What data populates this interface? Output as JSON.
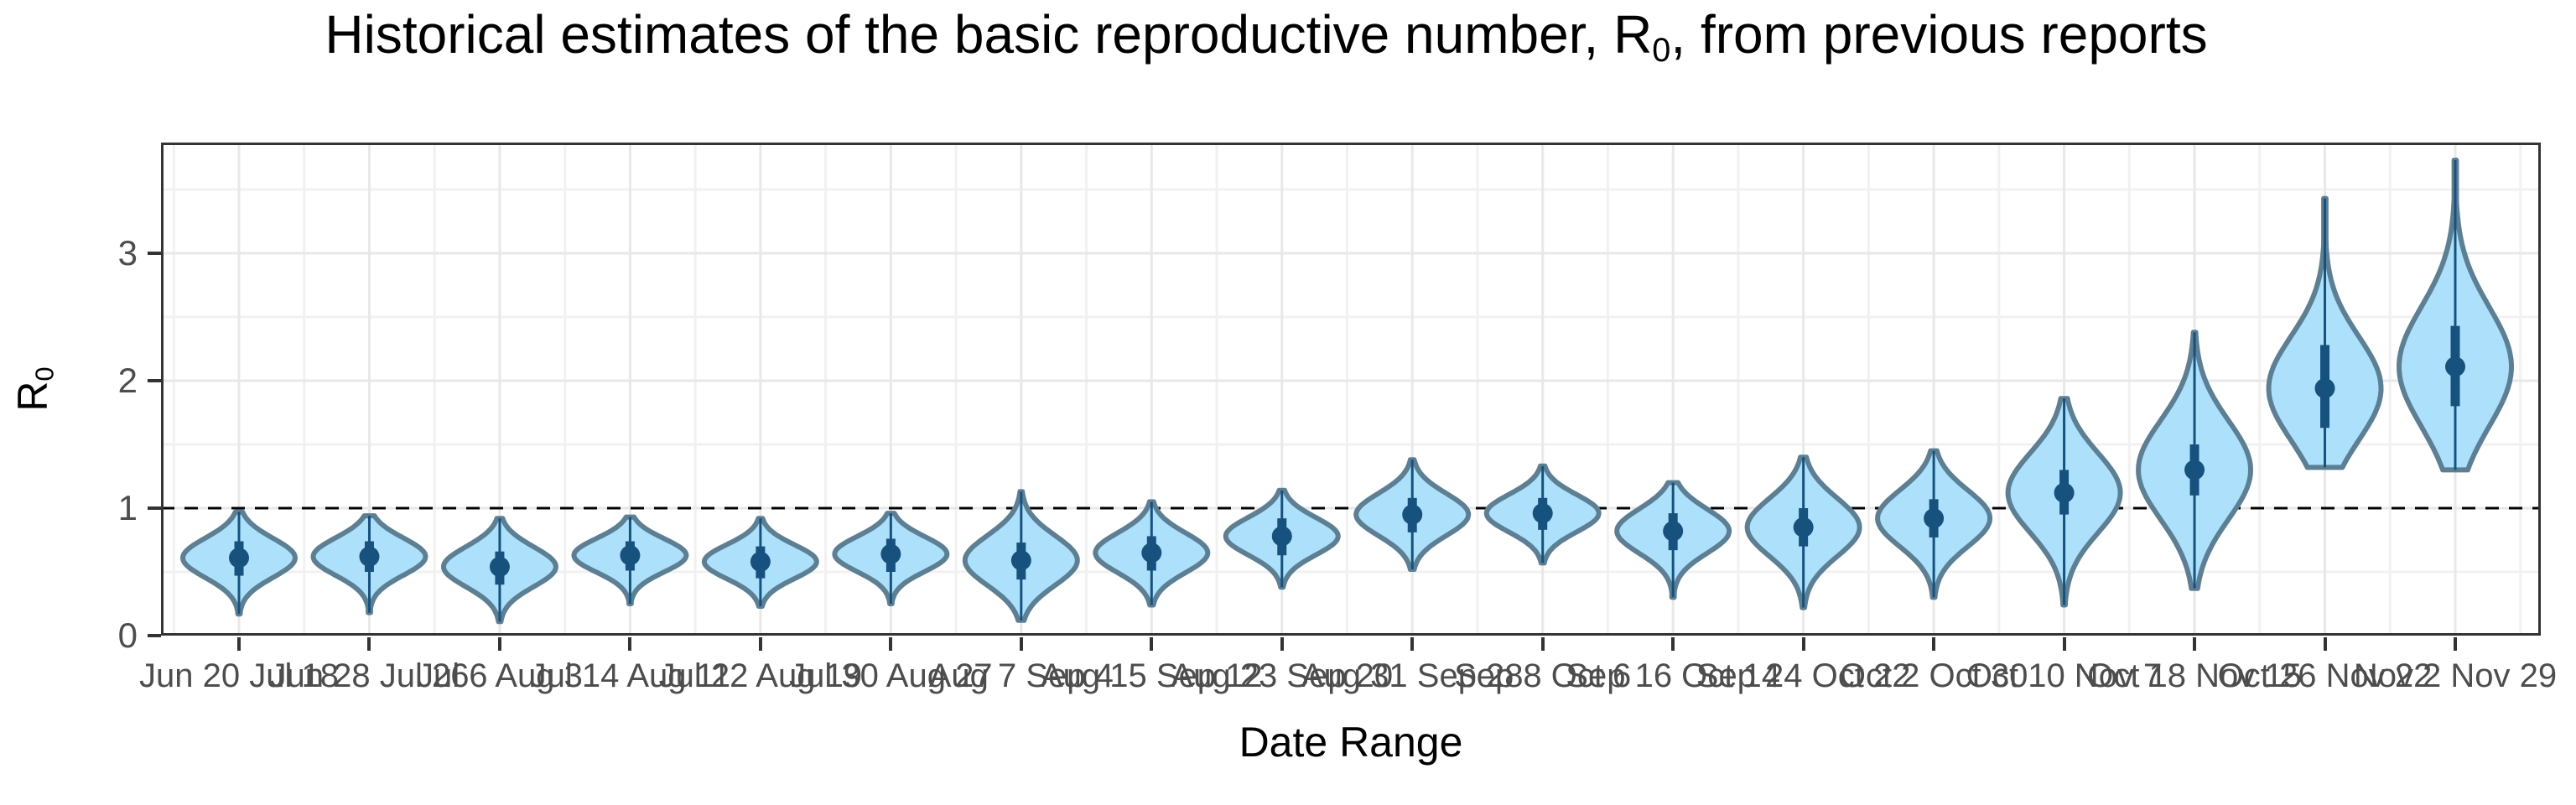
{
  "title": {
    "full": "Historical estimates of the basic reproductive number, R0, from previous reports",
    "prefix": "Historical estimates of the basic reproductive number, R",
    "sub": "0",
    "suffix": ", from previous reports"
  },
  "x_axis": {
    "title": "Date Range"
  },
  "y_axis": {
    "title_prefix": "R",
    "title_sub": "0",
    "tick_labels": [
      "0",
      "1",
      "2",
      "3"
    ]
  },
  "colors": {
    "violin_fill": "#ade1fb",
    "violin_stroke": "#5d7f94",
    "inner_mark": "#17517e",
    "grid_major": "#e8e8e8",
    "grid_minor": "#f1f1f1",
    "axis_line": "#333333",
    "tick_label": "#4d4d4d",
    "reference_line": "#000000",
    "background": "#ffffff"
  },
  "chart_data": {
    "type": "violin",
    "title": "Historical estimates of the basic reproductive number, R0, from previous reports",
    "xlabel": "Date Range",
    "ylabel": "R0",
    "ylim": [
      0,
      3.87
    ],
    "yticks": [
      0,
      1,
      2,
      3
    ],
    "grid": true,
    "legend": false,
    "reference_line": {
      "y": 1,
      "style": "dashed",
      "color": "#000000"
    },
    "categories": [
      "Jun 20 Jul 18",
      "Jun 28 Jul 26",
      "Jul 6 Aug 3",
      "Jul 14 Aug 11",
      "Jul 22 Aug 19",
      "Jul 30 Aug 27",
      "Aug 7 Sep 4",
      "Aug 15 Sep 12",
      "Aug 23 Sep 20",
      "Aug 31 Sep 28",
      "Sep 8 Oct 6",
      "Sep 16 Oct 14",
      "Sep 24 Oct 22",
      "Oct 2 Oct 30",
      "Oct 10 Nov 7",
      "Oct 18 Nov 15",
      "Oct 26 Nov 22",
      "Nov 2 Nov 29"
    ],
    "series": [
      {
        "name": "R0 posterior median",
        "values": [
          0.61,
          0.62,
          0.54,
          0.63,
          0.58,
          0.64,
          0.59,
          0.65,
          0.78,
          0.95,
          0.96,
          0.82,
          0.85,
          0.92,
          1.12,
          1.3,
          1.94,
          2.11
        ]
      },
      {
        "name": "lower credible bound",
        "values": [
          0.17,
          0.18,
          0.11,
          0.25,
          0.23,
          0.25,
          0.12,
          0.24,
          0.38,
          0.52,
          0.57,
          0.3,
          0.22,
          0.3,
          0.24,
          0.37,
          1.32,
          1.3
        ]
      },
      {
        "name": "upper credible bound",
        "values": [
          0.97,
          0.94,
          0.92,
          0.93,
          0.92,
          0.96,
          1.13,
          1.05,
          1.14,
          1.38,
          1.33,
          1.2,
          1.4,
          1.45,
          1.86,
          2.38,
          3.43,
          3.73
        ]
      },
      {
        "name": "interquartile low",
        "values": [
          0.47,
          0.5,
          0.4,
          0.51,
          0.45,
          0.5,
          0.44,
          0.51,
          0.63,
          0.81,
          0.83,
          0.67,
          0.7,
          0.77,
          0.95,
          1.1,
          1.63,
          1.8
        ]
      },
      {
        "name": "interquartile high",
        "values": [
          0.74,
          0.74,
          0.66,
          0.74,
          0.7,
          0.76,
          0.73,
          0.78,
          0.92,
          1.08,
          1.08,
          0.96,
          1.0,
          1.07,
          1.3,
          1.5,
          2.28,
          2.43
        ]
      }
    ]
  }
}
